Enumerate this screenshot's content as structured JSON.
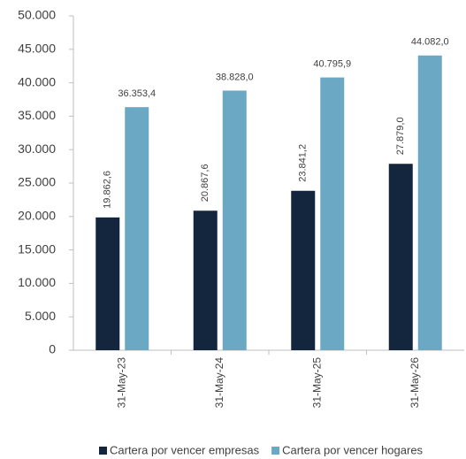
{
  "chart_data": {
    "type": "bar",
    "categories": [
      "31-May-23",
      "31-May-24",
      "31-May-25",
      "31-May-26"
    ],
    "series": [
      {
        "name": "Cartera por vencer empresas",
        "color": "#14263d",
        "values": [
          19862.6,
          20867.6,
          23841.2,
          27879.0
        ],
        "value_labels": [
          "19.862,6",
          "20.867,6",
          "23.841,2",
          "27.879,0"
        ]
      },
      {
        "name": "Cartera por vencer hogares",
        "color": "#6aa8c4",
        "values": [
          36353.4,
          38828.0,
          40795.9,
          44082.0
        ],
        "value_labels": [
          "36.353,4",
          "38.828,0",
          "40.795,9",
          "44.082,0"
        ]
      }
    ],
    "ylim": [
      0,
      50000
    ],
    "yticks": [
      0,
      {
        "value": 5000,
        "label": "5.000"
      },
      {
        "value": 10000,
        "label": "10.000"
      },
      {
        "value": 15000,
        "label": "15.000"
      },
      {
        "value": 20000,
        "label": "20.000"
      },
      {
        "value": 25000,
        "label": "25.000"
      },
      {
        "value": 30000,
        "label": "30.000"
      },
      {
        "value": 35000,
        "label": "35.000"
      },
      {
        "value": 40000,
        "label": "40.000"
      },
      {
        "value": 45000,
        "label": "45.000"
      },
      {
        "value": 50000,
        "label": "50.000"
      }
    ],
    "grid": false
  }
}
